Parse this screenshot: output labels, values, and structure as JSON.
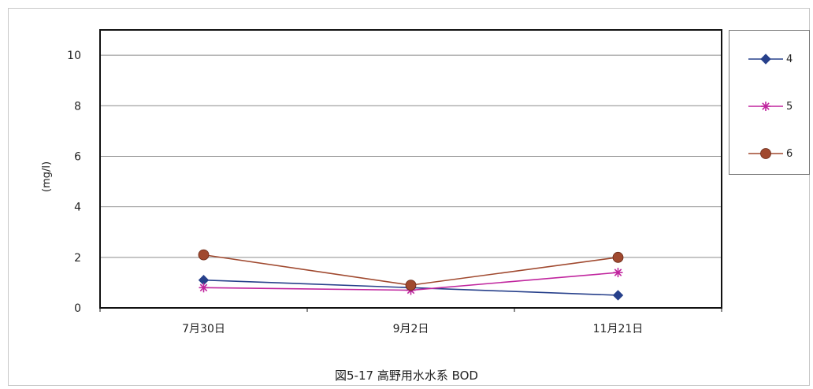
{
  "chart_data": {
    "type": "line",
    "title": "図5-17 高野用水水系 BOD",
    "ylabel": "(mg/l)",
    "xlabel": "",
    "categories": [
      "7月30日",
      "9月2日",
      "11月21日"
    ],
    "ylim": [
      0,
      11
    ],
    "yticks": [
      0,
      2,
      4,
      6,
      8,
      10
    ],
    "grid": true,
    "legend_position": "right",
    "series": [
      {
        "name": "4",
        "values": [
          1.1,
          0.8,
          0.5
        ],
        "color": "#27408b",
        "marker": "diamond"
      },
      {
        "name": "5",
        "values": [
          0.8,
          0.7,
          1.4
        ],
        "color": "#c0259e",
        "marker": "star"
      },
      {
        "name": "6",
        "values": [
          2.1,
          0.9,
          2.0
        ],
        "color": "#a0492f",
        "marker": "circle"
      }
    ]
  }
}
